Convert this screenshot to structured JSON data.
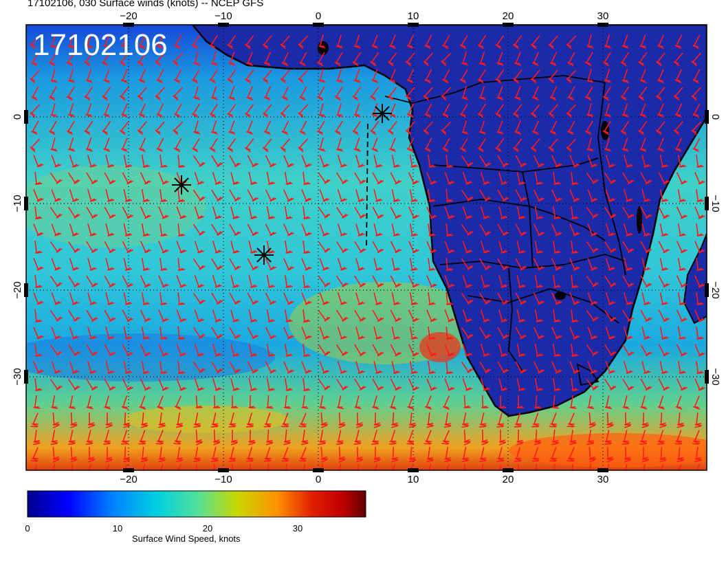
{
  "title": "17102106, 030 Surface winds (knots) -- NCEP GFS",
  "stamp": "17102106",
  "x_ticks": [
    "−20",
    "−10",
    "0",
    "10",
    "20",
    "30"
  ],
  "y_ticks": [
    "0",
    "−10",
    "−20",
    "−30"
  ],
  "colorbar": {
    "label": "Surface Wind Speed, knots",
    "ticks": [
      "0",
      "10",
      "20",
      "30"
    ],
    "stops": [
      "#00008b",
      "#0000ff",
      "#0080ff",
      "#00d0e0",
      "#50e0a0",
      "#c8d800",
      "#ff9000",
      "#e02000",
      "#c00000",
      "#600000"
    ]
  },
  "map_colors": {
    "land_bg": "#1a2aa8",
    "ocean_mid": "#20b0e0",
    "wind_barb": "#ff1a1a",
    "coast": "#000000"
  },
  "markers": [
    "asterisk-marker",
    "asterisk-marker",
    "asterisk-marker"
  ]
}
